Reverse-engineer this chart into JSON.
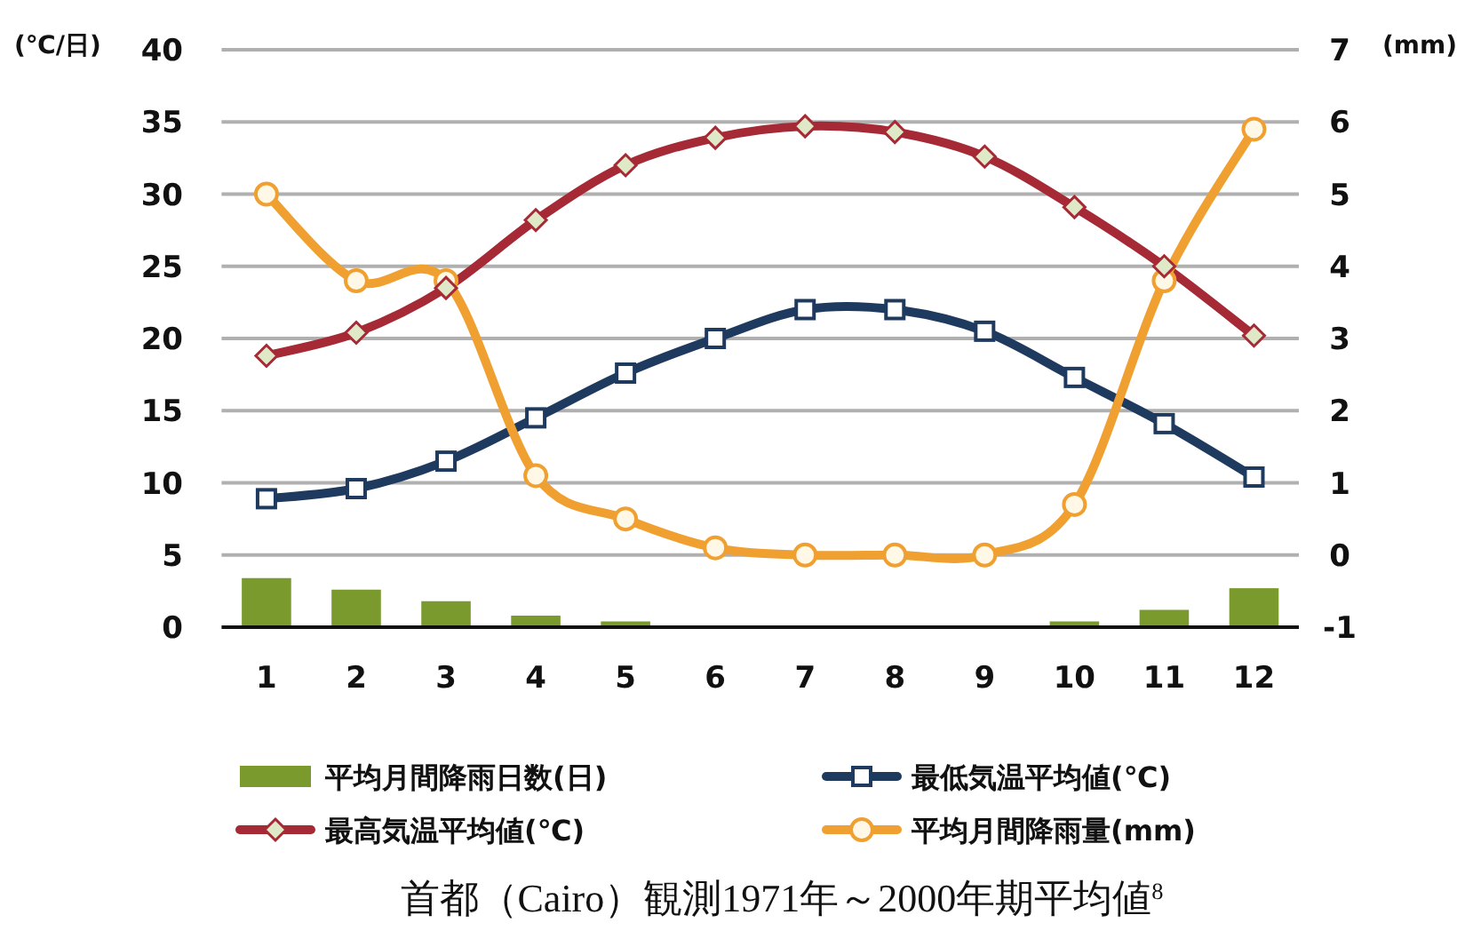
{
  "chart_data": {
    "type": "line",
    "title": "首都（Cairo）観測1971年～2000年期平均値$^{8}$",
    "ylabel": "(℃/日)",
    "y2label": "(mm)",
    "categories": [
      "1",
      "2",
      "3",
      "4",
      "5",
      "6",
      "7",
      "8",
      "9",
      "10",
      "11",
      "12"
    ],
    "ylim": [
      0,
      40
    ],
    "yticks": [
      0,
      5,
      10,
      15,
      20,
      25,
      30,
      35,
      40
    ],
    "y2lim": [
      -1,
      7
    ],
    "y2ticks": [
      -1,
      0,
      1,
      2,
      3,
      4,
      5,
      6,
      7
    ],
    "grid": "y",
    "legend": "bottom",
    "series": [
      {
        "name": "平均月間降雨日数(日)",
        "type": "bar",
        "color": "#7a9a2e",
        "values": [
          3.4,
          2.6,
          1.8,
          0.8,
          0.4,
          0,
          0,
          0,
          0,
          0.4,
          1.2,
          2.7
        ]
      },
      {
        "name": "最低気温平均値(℃)",
        "marker": "square",
        "color": "#1f3a5f",
        "values": [
          8.9,
          9.6,
          11.5,
          14.5,
          17.6,
          20.0,
          22.0,
          22.0,
          20.5,
          17.3,
          14.1,
          10.4
        ]
      },
      {
        "name": "最高気温平均値(℃)",
        "marker": "diamond",
        "color": "#a52a35",
        "values": [
          18.8,
          20.4,
          23.5,
          28.2,
          32.0,
          33.9,
          34.7,
          34.3,
          32.6,
          29.1,
          25.0,
          20.2
        ]
      },
      {
        "name": "平均月間降雨量(mm)",
        "axis": "y2",
        "marker": "circle",
        "color": "#f0a030",
        "values": [
          5.0,
          3.8,
          3.8,
          1.1,
          0.5,
          0.1,
          0,
          0,
          0,
          0.7,
          3.8,
          5.9
        ]
      }
    ]
  }
}
